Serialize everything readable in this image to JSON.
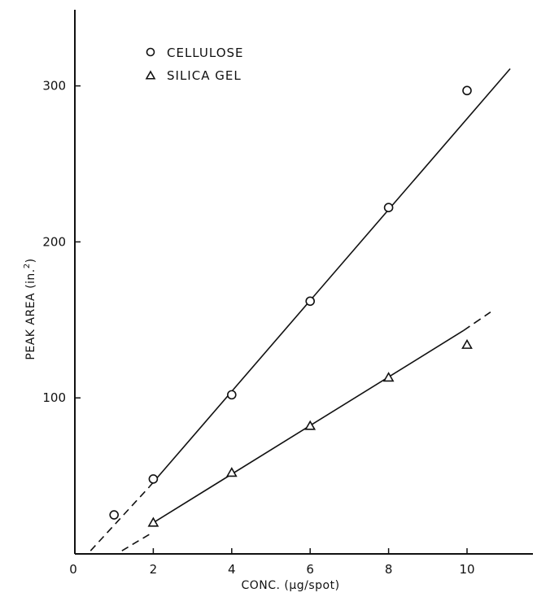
{
  "chart_data": {
    "type": "scatter",
    "title": "",
    "xlabel": "CONC. (μg/spot)",
    "ylabel_main": "PEAK AREA (in.",
    "ylabel_sup": "2",
    "ylabel_close": ")",
    "xlim": [
      0,
      12
    ],
    "ylim": [
      0,
      350
    ],
    "x_ticks": [
      0,
      2,
      4,
      6,
      8,
      10
    ],
    "y_ticks": [
      100,
      200,
      300
    ],
    "grid": false,
    "legend_position": "top-left",
    "series": [
      {
        "name": "CELLULOSE",
        "marker": "circle",
        "x": [
          1,
          2,
          4,
          6,
          8,
          10
        ],
        "y": [
          25,
          48,
          102,
          162,
          222,
          297
        ],
        "fit_line": {
          "solid_from": [
            1.9,
            43
          ],
          "solid_to": [
            11.1,
            311
          ],
          "dashed_from": [
            0.4,
            2
          ],
          "dashed_to": [
            1.9,
            43
          ]
        }
      },
      {
        "name": "SILICA GEL",
        "marker": "triangle",
        "x": [
          2,
          4,
          6,
          8,
          10
        ],
        "y": [
          20,
          52,
          82,
          113,
          134
        ],
        "fit_line": {
          "solid_from": [
            2.0,
            20
          ],
          "solid_to": [
            9.9,
            143
          ],
          "dashed_from": [
            1.2,
            2
          ],
          "dashed_to": [
            2.0,
            14
          ],
          "dashed_end_from": [
            9.9,
            143
          ],
          "dashed_end_to": [
            10.6,
            155
          ]
        }
      }
    ]
  }
}
